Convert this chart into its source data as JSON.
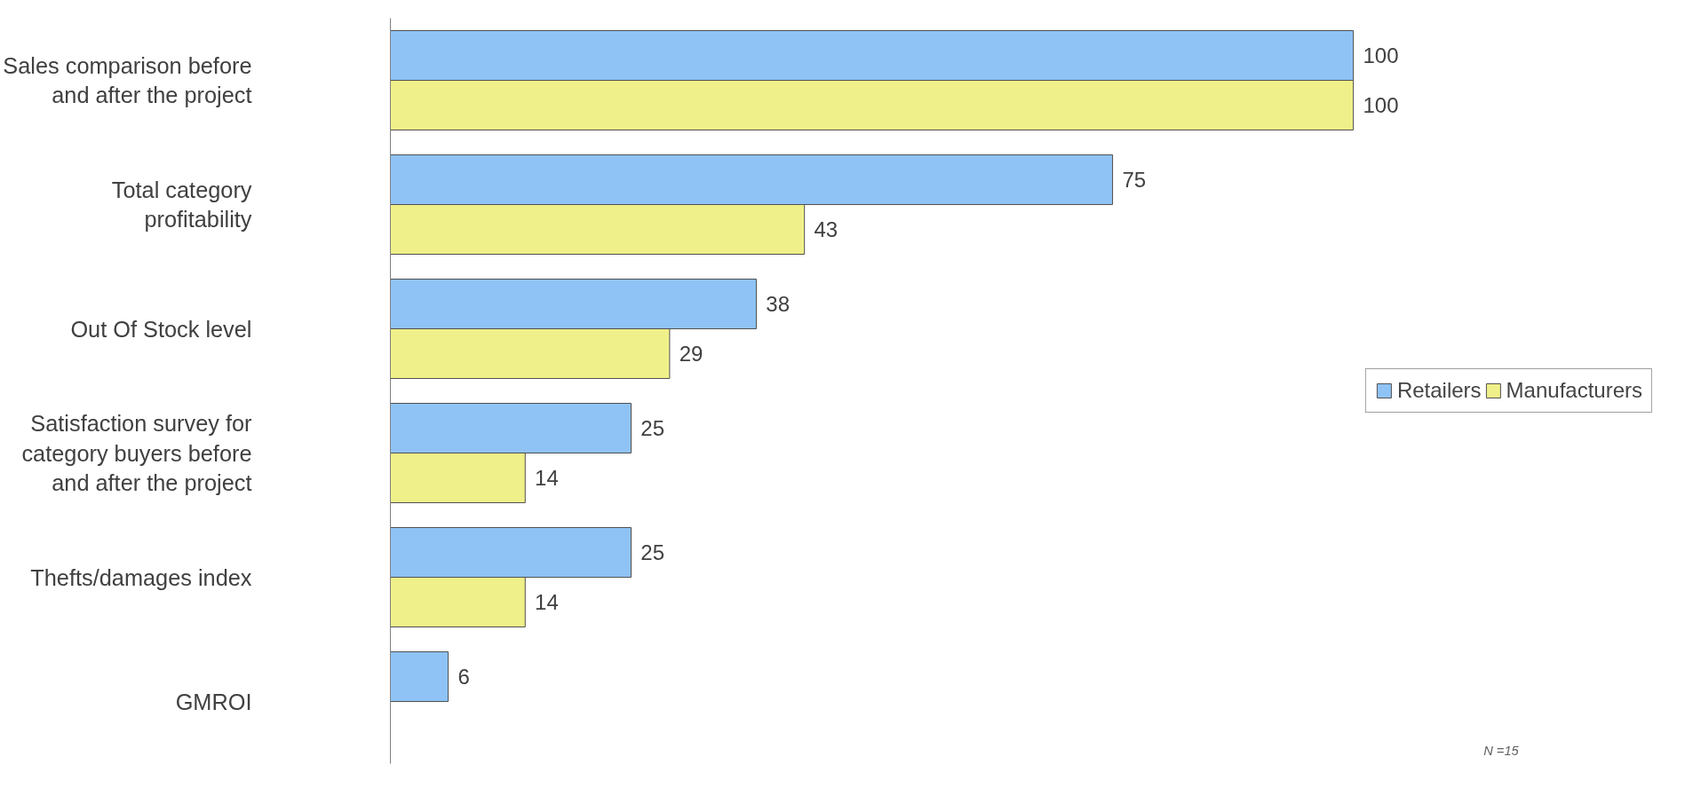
{
  "chart_data": {
    "type": "bar",
    "orientation": "horizontal",
    "categories": [
      "Sales comparison before and after the project",
      "Total category profitability",
      "Out Of Stock level",
      "Satisfaction survey for category buyers before and after the project",
      "Thefts/damages index",
      "GMROI"
    ],
    "series": [
      {
        "name": "Retailers",
        "color": "#8fc3f5",
        "values": [
          100,
          75,
          38,
          25,
          25,
          6
        ]
      },
      {
        "name": "Manufacturers",
        "color": "#f0f08a",
        "values": [
          100,
          43,
          29,
          14,
          14,
          null
        ]
      }
    ],
    "data_labels": true,
    "legend": "right",
    "grid": false,
    "tick_labels": "y",
    "annotations": [
      "N =15"
    ]
  }
}
